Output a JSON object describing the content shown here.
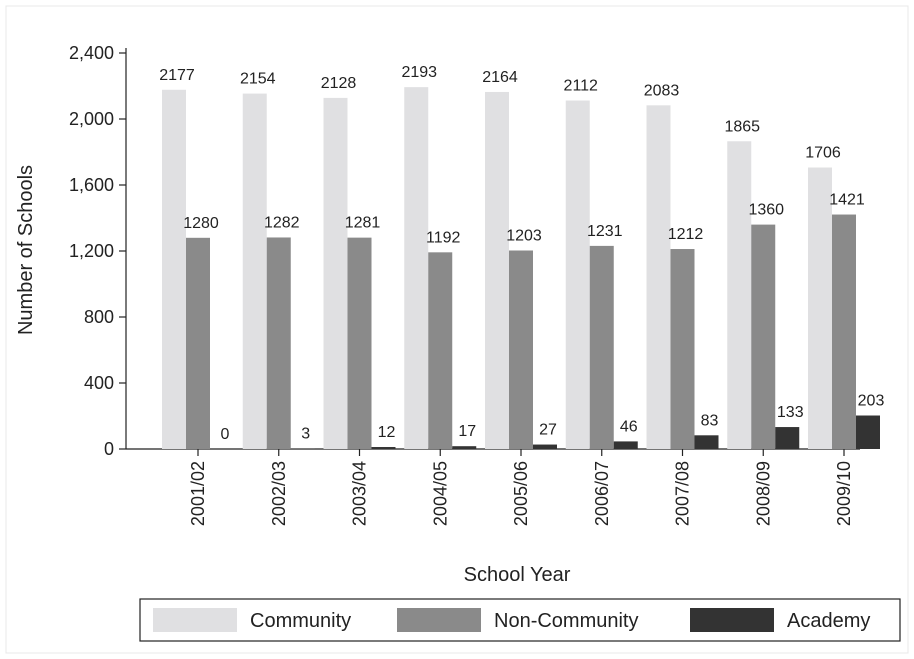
{
  "chart_data": {
    "type": "bar",
    "title": "",
    "xlabel": "School Year",
    "ylabel": "Number of Schools",
    "ylim": [
      0,
      2400
    ],
    "yticks": [
      0,
      400,
      800,
      1200,
      1600,
      2000,
      2400
    ],
    "ytick_labels": [
      "0",
      "400",
      "800",
      "1,200",
      "1,600",
      "2,000",
      "2,400"
    ],
    "categories": [
      "2001/02",
      "2002/03",
      "2003/04",
      "2004/05",
      "2005/06",
      "2006/07",
      "2007/08",
      "2008/09",
      "2009/10"
    ],
    "series": [
      {
        "name": "Community",
        "color": "#e0e0e2",
        "values": [
          2177,
          2154,
          2128,
          2193,
          2164,
          2112,
          2083,
          1865,
          1706
        ]
      },
      {
        "name": "Non-Community",
        "color": "#8a8a8a",
        "values": [
          1280,
          1282,
          1281,
          1192,
          1203,
          1231,
          1212,
          1360,
          1421
        ]
      },
      {
        "name": "Academy",
        "color": "#333333",
        "values": [
          0,
          3,
          12,
          17,
          27,
          46,
          83,
          133,
          203
        ]
      }
    ],
    "grid": false,
    "legend": "bottom"
  }
}
